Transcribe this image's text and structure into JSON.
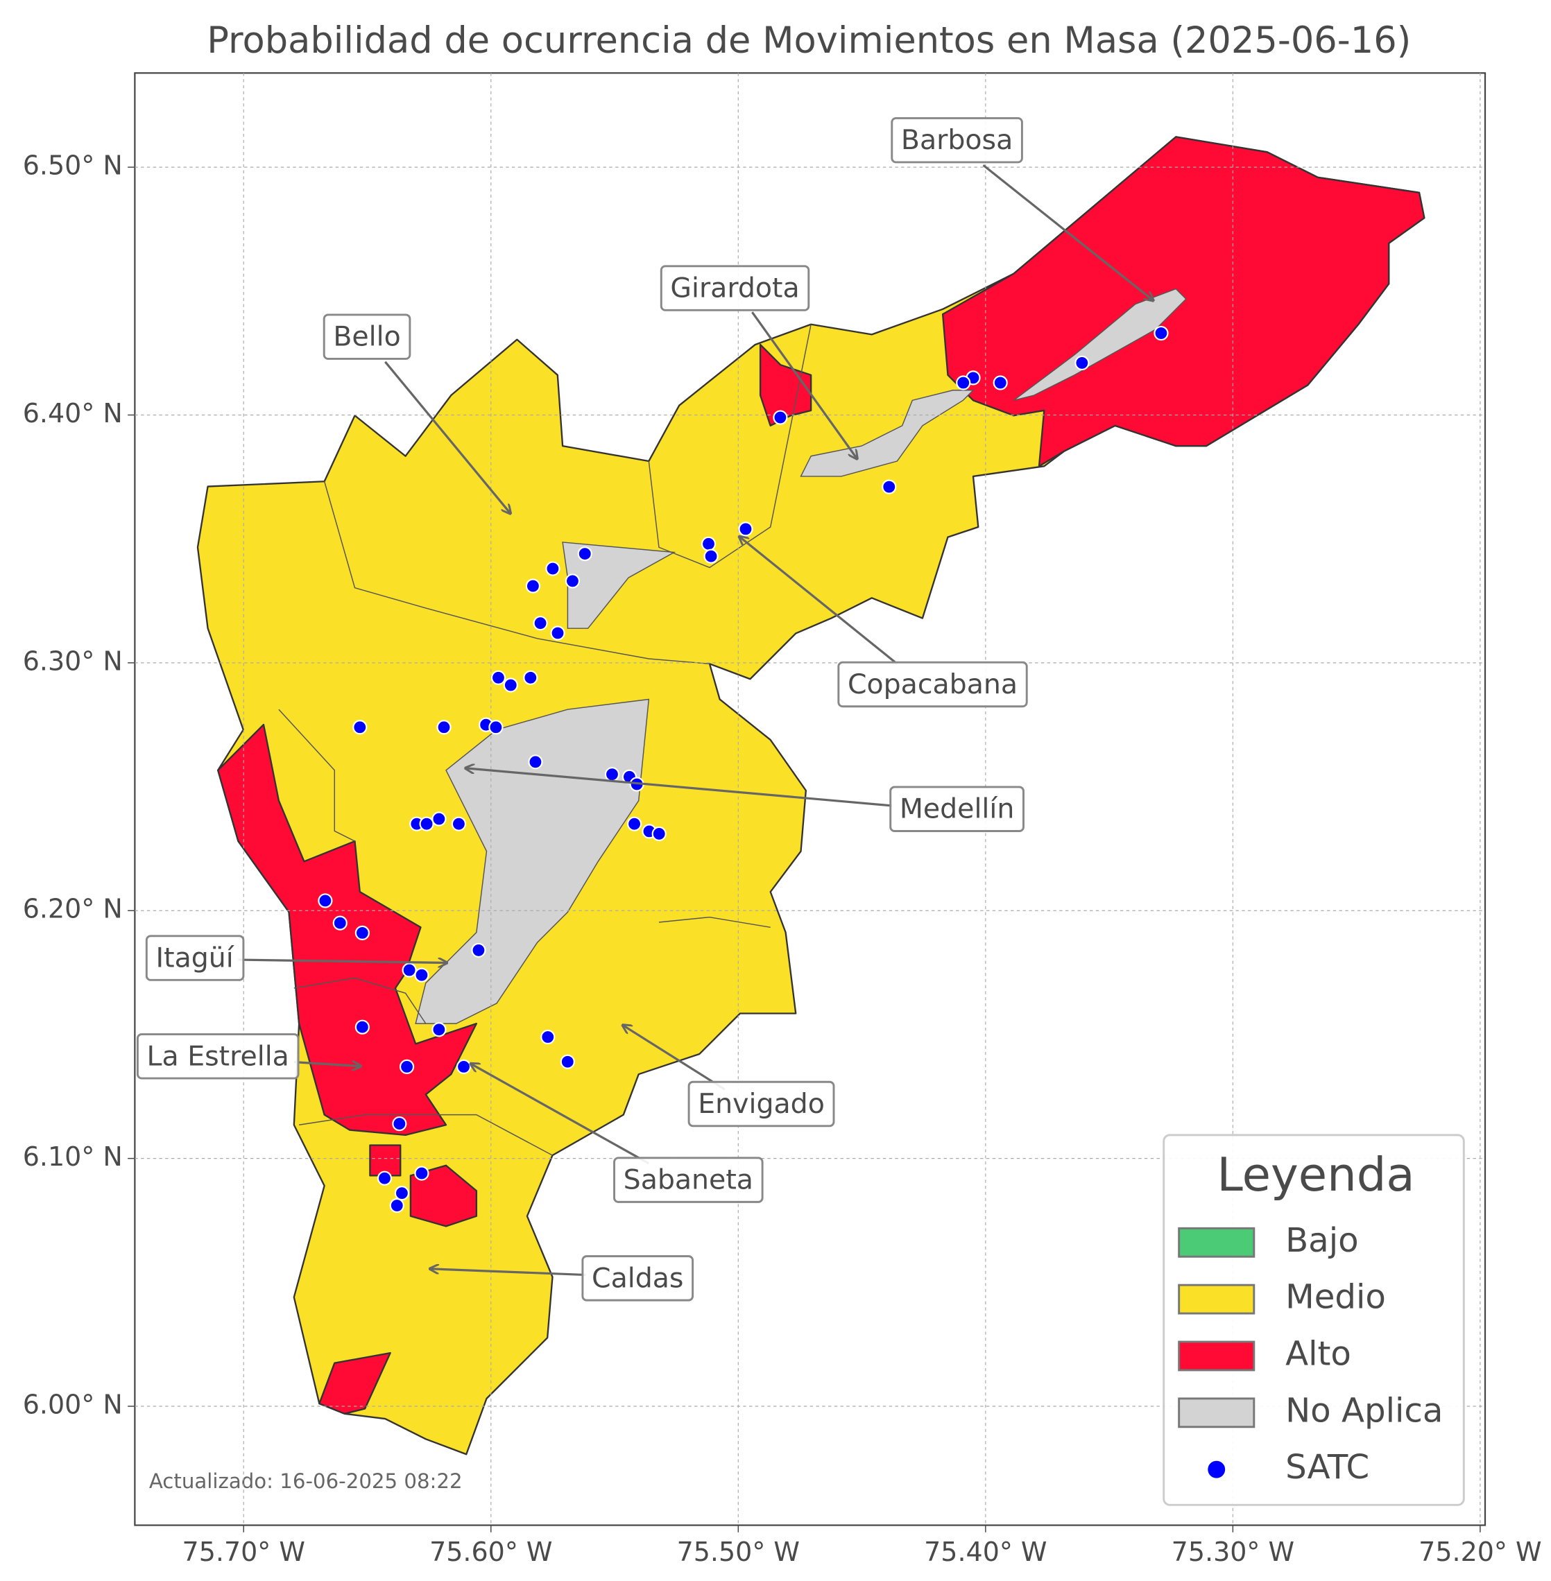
{
  "chart_data": {
    "type": "map",
    "title": "Probabilidad de ocurrencia de Movimientos en Masa (2025-06-16)",
    "xlim": [
      -75.744,
      -75.198
    ],
    "ylim": [
      5.952,
      6.538
    ],
    "xticks": [
      {
        "value": -75.7,
        "label": "75.70° W"
      },
      {
        "value": -75.6,
        "label": "75.60° W"
      },
      {
        "value": -75.5,
        "label": "75.50° W"
      },
      {
        "value": -75.4,
        "label": "75.40° W"
      },
      {
        "value": -75.3,
        "label": "75.30° W"
      },
      {
        "value": -75.2,
        "label": "75.20° W"
      }
    ],
    "yticks": [
      {
        "value": 6.0,
        "label": "6.00° N"
      },
      {
        "value": 6.1,
        "label": "6.10° N"
      },
      {
        "value": 6.2,
        "label": "6.20° N"
      },
      {
        "value": 6.3,
        "label": "6.30° N"
      },
      {
        "value": 6.4,
        "label": "6.40° N"
      },
      {
        "value": 6.5,
        "label": "6.50° N"
      }
    ],
    "grid": true,
    "legend": {
      "title": "Leyenda",
      "position": "lower right",
      "items": [
        {
          "label": "Bajo",
          "color": "#4ccb77"
        },
        {
          "label": "Medio",
          "color": "#fbe028"
        },
        {
          "label": "Alto",
          "color": "#ff0a35"
        },
        {
          "label": "No Aplica",
          "color": "#d3d3d3"
        }
      ]
    },
    "series": [
      {
        "name": "SATC",
        "color": "#0000ff",
        "x": [
          -75.329,
          -75.361,
          -75.394,
          -75.405,
          -75.409,
          -75.483,
          -75.439,
          -75.497,
          -75.512,
          -75.511,
          -75.562,
          -75.575,
          -75.567,
          -75.583,
          -75.58,
          -75.573,
          -75.597,
          -75.592,
          -75.584,
          -75.619,
          -75.602,
          -75.598,
          -75.582,
          -75.653,
          -75.551,
          -75.544,
          -75.541,
          -75.63,
          -75.626,
          -75.621,
          -75.613,
          -75.542,
          -75.536,
          -75.532,
          -75.667,
          -75.661,
          -75.652,
          -75.605,
          -75.633,
          -75.628,
          -75.652,
          -75.621,
          -75.577,
          -75.634,
          -75.611,
          -75.569,
          -75.637,
          -75.643,
          -75.628,
          -75.636,
          -75.638
        ],
        "values": [
          6.433,
          6.421,
          6.413,
          6.415,
          6.413,
          6.399,
          6.371,
          6.354,
          6.348,
          6.343,
          6.344,
          6.338,
          6.333,
          6.331,
          6.316,
          6.312,
          6.294,
          6.291,
          6.294,
          6.274,
          6.275,
          6.274,
          6.26,
          6.274,
          6.255,
          6.254,
          6.251,
          6.235,
          6.235,
          6.237,
          6.235,
          6.235,
          6.232,
          6.231,
          6.204,
          6.195,
          6.191,
          6.184,
          6.176,
          6.174,
          6.153,
          6.152,
          6.149,
          6.137,
          6.137,
          6.139,
          6.114,
          6.092,
          6.094,
          6.086,
          6.081
        ]
      }
    ],
    "annotations": [
      "Barbosa",
      "Girardota",
      "Bello",
      "Copacabana",
      "Medellín",
      "Itagüí",
      "La Estrella",
      "Envigado",
      "Sabaneta",
      "Caldas"
    ],
    "footnote": "Actualizado: 16-06-2025 08:22"
  }
}
